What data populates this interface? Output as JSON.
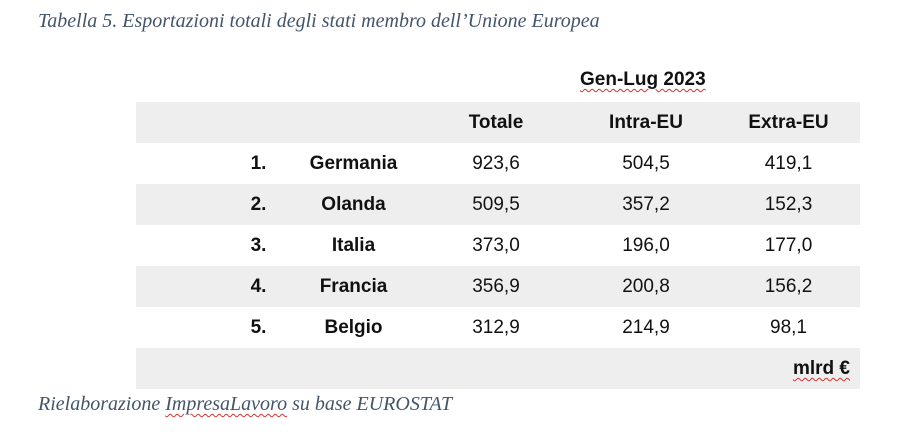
{
  "caption": "Tabella 5. Esportazioni totali degli stati membro dell’Unione Europea",
  "period": "Gen-Lug 2023",
  "headers": {
    "total": "Totale",
    "intra": "Intra-EU",
    "extra": "Extra-EU"
  },
  "rows": [
    {
      "rank": "1.",
      "country": "Germania",
      "total": "923,6",
      "intra": "504,5",
      "extra": "419,1"
    },
    {
      "rank": "2.",
      "country": "Olanda",
      "total": "509,5",
      "intra": "357,2",
      "extra": "152,3"
    },
    {
      "rank": "3.",
      "country": "Italia",
      "total": "373,0",
      "intra": "196,0",
      "extra": "177,0"
    },
    {
      "rank": "4.",
      "country": "Francia",
      "total": "356,9",
      "intra": "200,8",
      "extra": "156,2"
    },
    {
      "rank": "5.",
      "country": "Belgio",
      "total": "312,9",
      "intra": "214,9",
      "extra": "98,1"
    }
  ],
  "unit": "mlrd €",
  "source": {
    "prefix": "Rielaborazione ",
    "name": "ImpresaLavoro",
    "suffix": " su base EUROSTAT"
  }
}
